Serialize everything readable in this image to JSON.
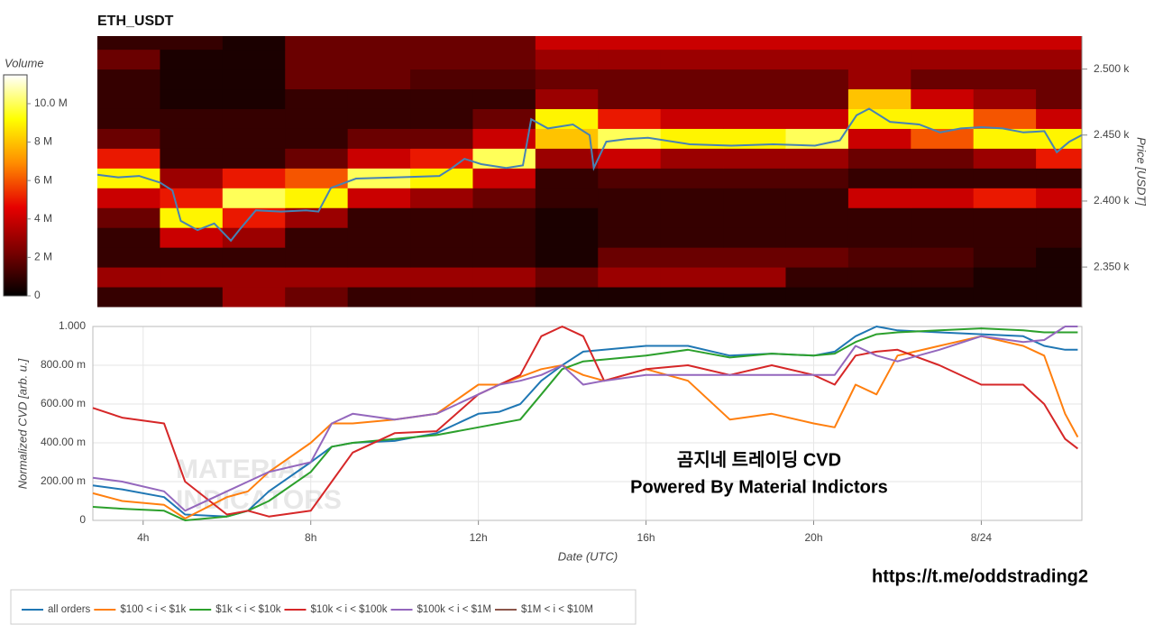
{
  "chart_data": [
    {
      "type": "heatmap",
      "title": "ETH_USDT",
      "ylabel": "Price [USDT]",
      "xlim": [
        2.8,
        26.4
      ],
      "ylim": [
        2320,
        2525
      ],
      "yticks": [
        {
          "value": 2350,
          "label": "2.350 k"
        },
        {
          "value": 2400,
          "label": "2.400 k"
        },
        {
          "value": 2450,
          "label": "2.450 k"
        },
        {
          "value": 2500,
          "label": "2.500 k"
        }
      ],
      "x_edges": [
        2.8,
        4.3,
        5.8,
        7.3,
        8.8,
        10.3,
        11.8,
        13.3,
        14.8,
        16.3,
        17.8,
        19.3,
        20.8,
        22.3,
        23.8,
        25.3,
        26.4
      ],
      "y_edges": [
        2320,
        2335,
        2350,
        2365,
        2380,
        2395,
        2410,
        2425,
        2440,
        2455,
        2470,
        2485,
        2500,
        2515,
        2525
      ],
      "z": [
        [
          1,
          1,
          3,
          2,
          1,
          1,
          1,
          0.5,
          0.5,
          0.5,
          0.5,
          0.5,
          0.5,
          0.5,
          0.5,
          0.5
        ],
        [
          3,
          3,
          3,
          3,
          3,
          3,
          3,
          2,
          3,
          3,
          3,
          1,
          1,
          1,
          0.5,
          0.5
        ],
        [
          1,
          1,
          1,
          1,
          1,
          1,
          1,
          0.5,
          2,
          2,
          2,
          2,
          1.5,
          1.5,
          1,
          0.5
        ],
        [
          1,
          4,
          3,
          1,
          1,
          1,
          1,
          0.5,
          1,
          1,
          1,
          1,
          1,
          1,
          1,
          1
        ],
        [
          2,
          9,
          5,
          3,
          1,
          1,
          1,
          0.5,
          1,
          1,
          1,
          1,
          1,
          1,
          1,
          1
        ],
        [
          4,
          5,
          10,
          9,
          4,
          3,
          2,
          1,
          1,
          1,
          1,
          1,
          4,
          4,
          5,
          4
        ],
        [
          9,
          3,
          5,
          6,
          10,
          9,
          4,
          1,
          1.5,
          1.5,
          1.5,
          1.5,
          1,
          1,
          1,
          1
        ],
        [
          5,
          1,
          1,
          2,
          4,
          5,
          10,
          3,
          4,
          3,
          3,
          3,
          2,
          2,
          3,
          5
        ],
        [
          2,
          1,
          1,
          1,
          2,
          2,
          4,
          8,
          10,
          9,
          9,
          10,
          4,
          6,
          9,
          9
        ],
        [
          1,
          1,
          1,
          1,
          1,
          1,
          2,
          9,
          5,
          4,
          4,
          4,
          9,
          9,
          6,
          4
        ],
        [
          1,
          0.5,
          0.5,
          1,
          1,
          1,
          1,
          3,
          2,
          2,
          2,
          2,
          8,
          4,
          3,
          2
        ],
        [
          1,
          0.5,
          0.5,
          2,
          2,
          1.5,
          1.5,
          2,
          2,
          2,
          2,
          2,
          3,
          2,
          2,
          2
        ],
        [
          2,
          0.5,
          0.5,
          2,
          2,
          2,
          2,
          3,
          3,
          3,
          3,
          3,
          3,
          3,
          3,
          3
        ],
        [
          1,
          1,
          0.5,
          2,
          2,
          2,
          2,
          4,
          4,
          4,
          4,
          4,
          4,
          4,
          4,
          4
        ]
      ],
      "colorscale": [
        "#000000",
        "#7a0000",
        "#e60000",
        "#ff8c00",
        "#ffff00",
        "#ffffff"
      ],
      "colorbar": {
        "title": "Volume",
        "lim": [
          0,
          11.5
        ],
        "ticks": [
          0,
          {
            "value": 2,
            "label": "2 M"
          },
          {
            "value": 4,
            "label": "4 M"
          },
          {
            "value": 6,
            "label": "6 M"
          },
          {
            "value": 8,
            "label": "8 M"
          },
          {
            "value": 10,
            "label": "10.0 M"
          }
        ]
      },
      "line": {
        "color": "#4682b4",
        "x": [
          2.8,
          3.3,
          3.8,
          4.3,
          4.6,
          4.8,
          5.2,
          5.6,
          6,
          6.2,
          6.6,
          7.2,
          7.8,
          8.1,
          8.4,
          9,
          10,
          11,
          11.3,
          11.6,
          12,
          12.6,
          13,
          13.2,
          13.6,
          14.2,
          14.6,
          14.7,
          15,
          15.5,
          16,
          17,
          18,
          19,
          20,
          20.6,
          21,
          21.3,
          21.8,
          22.5,
          23,
          23.5,
          24,
          24.5,
          25,
          25.5,
          25.8,
          26.1,
          26.4
        ],
        "values": [
          2420,
          2418,
          2419,
          2414,
          2408,
          2385,
          2378,
          2383,
          2370,
          2378,
          2393,
          2392,
          2393,
          2392,
          2410,
          2417,
          2418,
          2419,
          2425,
          2432,
          2428,
          2425,
          2427,
          2462,
          2455,
          2458,
          2450,
          2425,
          2445,
          2447,
          2448,
          2443,
          2442,
          2443,
          2442,
          2446,
          2465,
          2470,
          2460,
          2458,
          2452,
          2455,
          2456,
          2455,
          2452,
          2453,
          2437,
          2445,
          2450
        ]
      }
    },
    {
      "type": "line",
      "xlabel": "Date (UTC)",
      "ylabel": "Normalized CVD [arb. u.]",
      "grid": true,
      "xlim": [
        2.8,
        26.4
      ],
      "ylim": [
        0,
        1
      ],
      "xticks": [
        {
          "value": 4,
          "label": "4h"
        },
        {
          "value": 8,
          "label": "8h"
        },
        {
          "value": 12,
          "label": "12h"
        },
        {
          "value": 16,
          "label": "16h"
        },
        {
          "value": 20,
          "label": "20h"
        },
        {
          "value": 24,
          "label": "8/24"
        }
      ],
      "yticks": [
        0,
        {
          "value": 0.2,
          "label": "200.00 m"
        },
        {
          "value": 0.4,
          "label": "400.00 m"
        },
        {
          "value": 0.6,
          "label": "600.00 m"
        },
        {
          "value": 0.8,
          "label": "800.00 m"
        },
        {
          "value": 1,
          "label": "1.000"
        }
      ],
      "x": [
        2.8,
        3.5,
        4.5,
        5,
        6,
        6.5,
        7,
        8,
        8.5,
        9,
        10,
        11,
        12,
        12.5,
        13,
        13.5,
        14,
        14.5,
        15,
        16,
        17,
        18,
        19,
        20,
        20.5,
        21,
        21.5,
        22,
        23,
        24,
        25,
        25.5,
        26,
        26.3
      ],
      "series": [
        {
          "name": "all orders",
          "color": "#1f77b4",
          "values": [
            0.18,
            0.16,
            0.12,
            0.03,
            0.02,
            0.05,
            0.15,
            0.3,
            0.38,
            0.4,
            0.41,
            0.45,
            0.55,
            0.56,
            0.6,
            0.72,
            0.8,
            0.87,
            0.88,
            0.9,
            0.9,
            0.85,
            0.86,
            0.85,
            0.87,
            0.95,
            1.0,
            0.98,
            0.97,
            0.96,
            0.95,
            0.9,
            0.88,
            0.88
          ]
        },
        {
          "name": "$100 < i < $1k",
          "color": "#ff7f0e",
          "values": [
            0.14,
            0.1,
            0.08,
            0.01,
            0.12,
            0.15,
            0.25,
            0.4,
            0.5,
            0.5,
            0.52,
            0.55,
            0.7,
            0.7,
            0.74,
            0.78,
            0.8,
            0.75,
            0.72,
            0.78,
            0.72,
            0.52,
            0.55,
            0.5,
            0.48,
            0.7,
            0.65,
            0.85,
            0.9,
            0.95,
            0.9,
            0.85,
            0.55,
            0.43
          ]
        },
        {
          "name": "$1k < i < $10k",
          "color": "#2ca02c",
          "values": [
            0.07,
            0.06,
            0.05,
            0.0,
            0.02,
            0.05,
            0.1,
            0.25,
            0.38,
            0.4,
            0.42,
            0.44,
            0.48,
            0.5,
            0.52,
            0.65,
            0.78,
            0.82,
            0.83,
            0.85,
            0.88,
            0.84,
            0.86,
            0.85,
            0.86,
            0.92,
            0.96,
            0.97,
            0.98,
            0.99,
            0.98,
            0.97,
            0.97,
            0.97
          ]
        },
        {
          "name": "$10k < i < $100k",
          "color": "#d62728",
          "values": [
            0.58,
            0.53,
            0.5,
            0.2,
            0.03,
            0.05,
            0.02,
            0.05,
            0.2,
            0.35,
            0.45,
            0.46,
            0.65,
            0.7,
            0.75,
            0.95,
            1.0,
            0.95,
            0.72,
            0.78,
            0.8,
            0.75,
            0.8,
            0.75,
            0.7,
            0.85,
            0.87,
            0.88,
            0.8,
            0.7,
            0.7,
            0.6,
            0.42,
            0.37
          ]
        },
        {
          "name": "$100k < i < $1M",
          "color": "#9467bd",
          "values": [
            0.22,
            0.2,
            0.15,
            0.05,
            0.15,
            0.2,
            0.25,
            0.3,
            0.5,
            0.55,
            0.52,
            0.55,
            0.65,
            0.7,
            0.72,
            0.75,
            0.8,
            0.7,
            0.72,
            0.75,
            0.75,
            0.75,
            0.75,
            0.75,
            0.75,
            0.9,
            0.85,
            0.82,
            0.88,
            0.95,
            0.92,
            0.93,
            1.0,
            1.0
          ]
        },
        {
          "name": "$1M < i < $10M",
          "color": "#8c564b",
          "values": [
            null,
            null,
            null,
            null,
            null,
            null,
            null,
            null,
            null,
            null,
            null,
            null,
            null,
            null,
            null,
            null,
            null,
            null,
            null,
            null,
            null,
            null,
            null,
            null,
            null,
            null,
            null,
            null,
            null,
            null,
            null,
            null,
            null,
            null
          ]
        }
      ],
      "annotations": [
        "곰지네 트레이딩 CVD",
        "Powered By Material Indictors"
      ],
      "watermark": [
        "MATERIAL",
        "INDICATORS"
      ]
    }
  ],
  "footer": {
    "link": "https://t.me/oddstrading2"
  }
}
